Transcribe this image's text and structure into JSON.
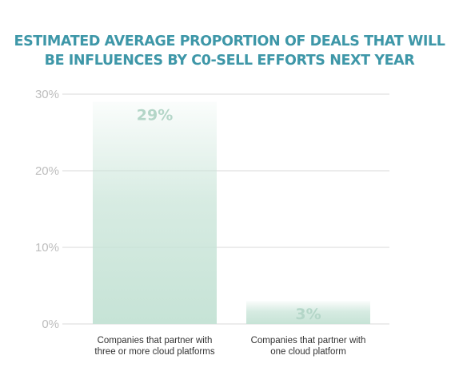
{
  "chart_data": {
    "type": "bar",
    "title_lines": [
      "ESTIMATED AVERAGE PROPORTION OF DEALS THAT WILL",
      "BE INFLUENCES BY C0-SELL EFFORTS NEXT YEAR"
    ],
    "categories": [
      [
        "Companies that partner with",
        "three or more cloud platforms"
      ],
      [
        "Companies that partner with",
        "one cloud platform"
      ]
    ],
    "values": [
      29,
      3
    ],
    "value_labels": [
      "29%",
      "3%"
    ],
    "ylim": [
      0,
      30
    ],
    "yticks": [
      0,
      10,
      20,
      30
    ],
    "ytick_labels": [
      "0%",
      "10%",
      "20%",
      "30%"
    ],
    "grid": true,
    "legend": "none",
    "colors": {
      "title": "#3e97a8",
      "bar": "#c6e3d6",
      "data_label": "#b4d6c8",
      "grid": "#d9d9d9",
      "tick_label": "#bdbdbd"
    }
  }
}
